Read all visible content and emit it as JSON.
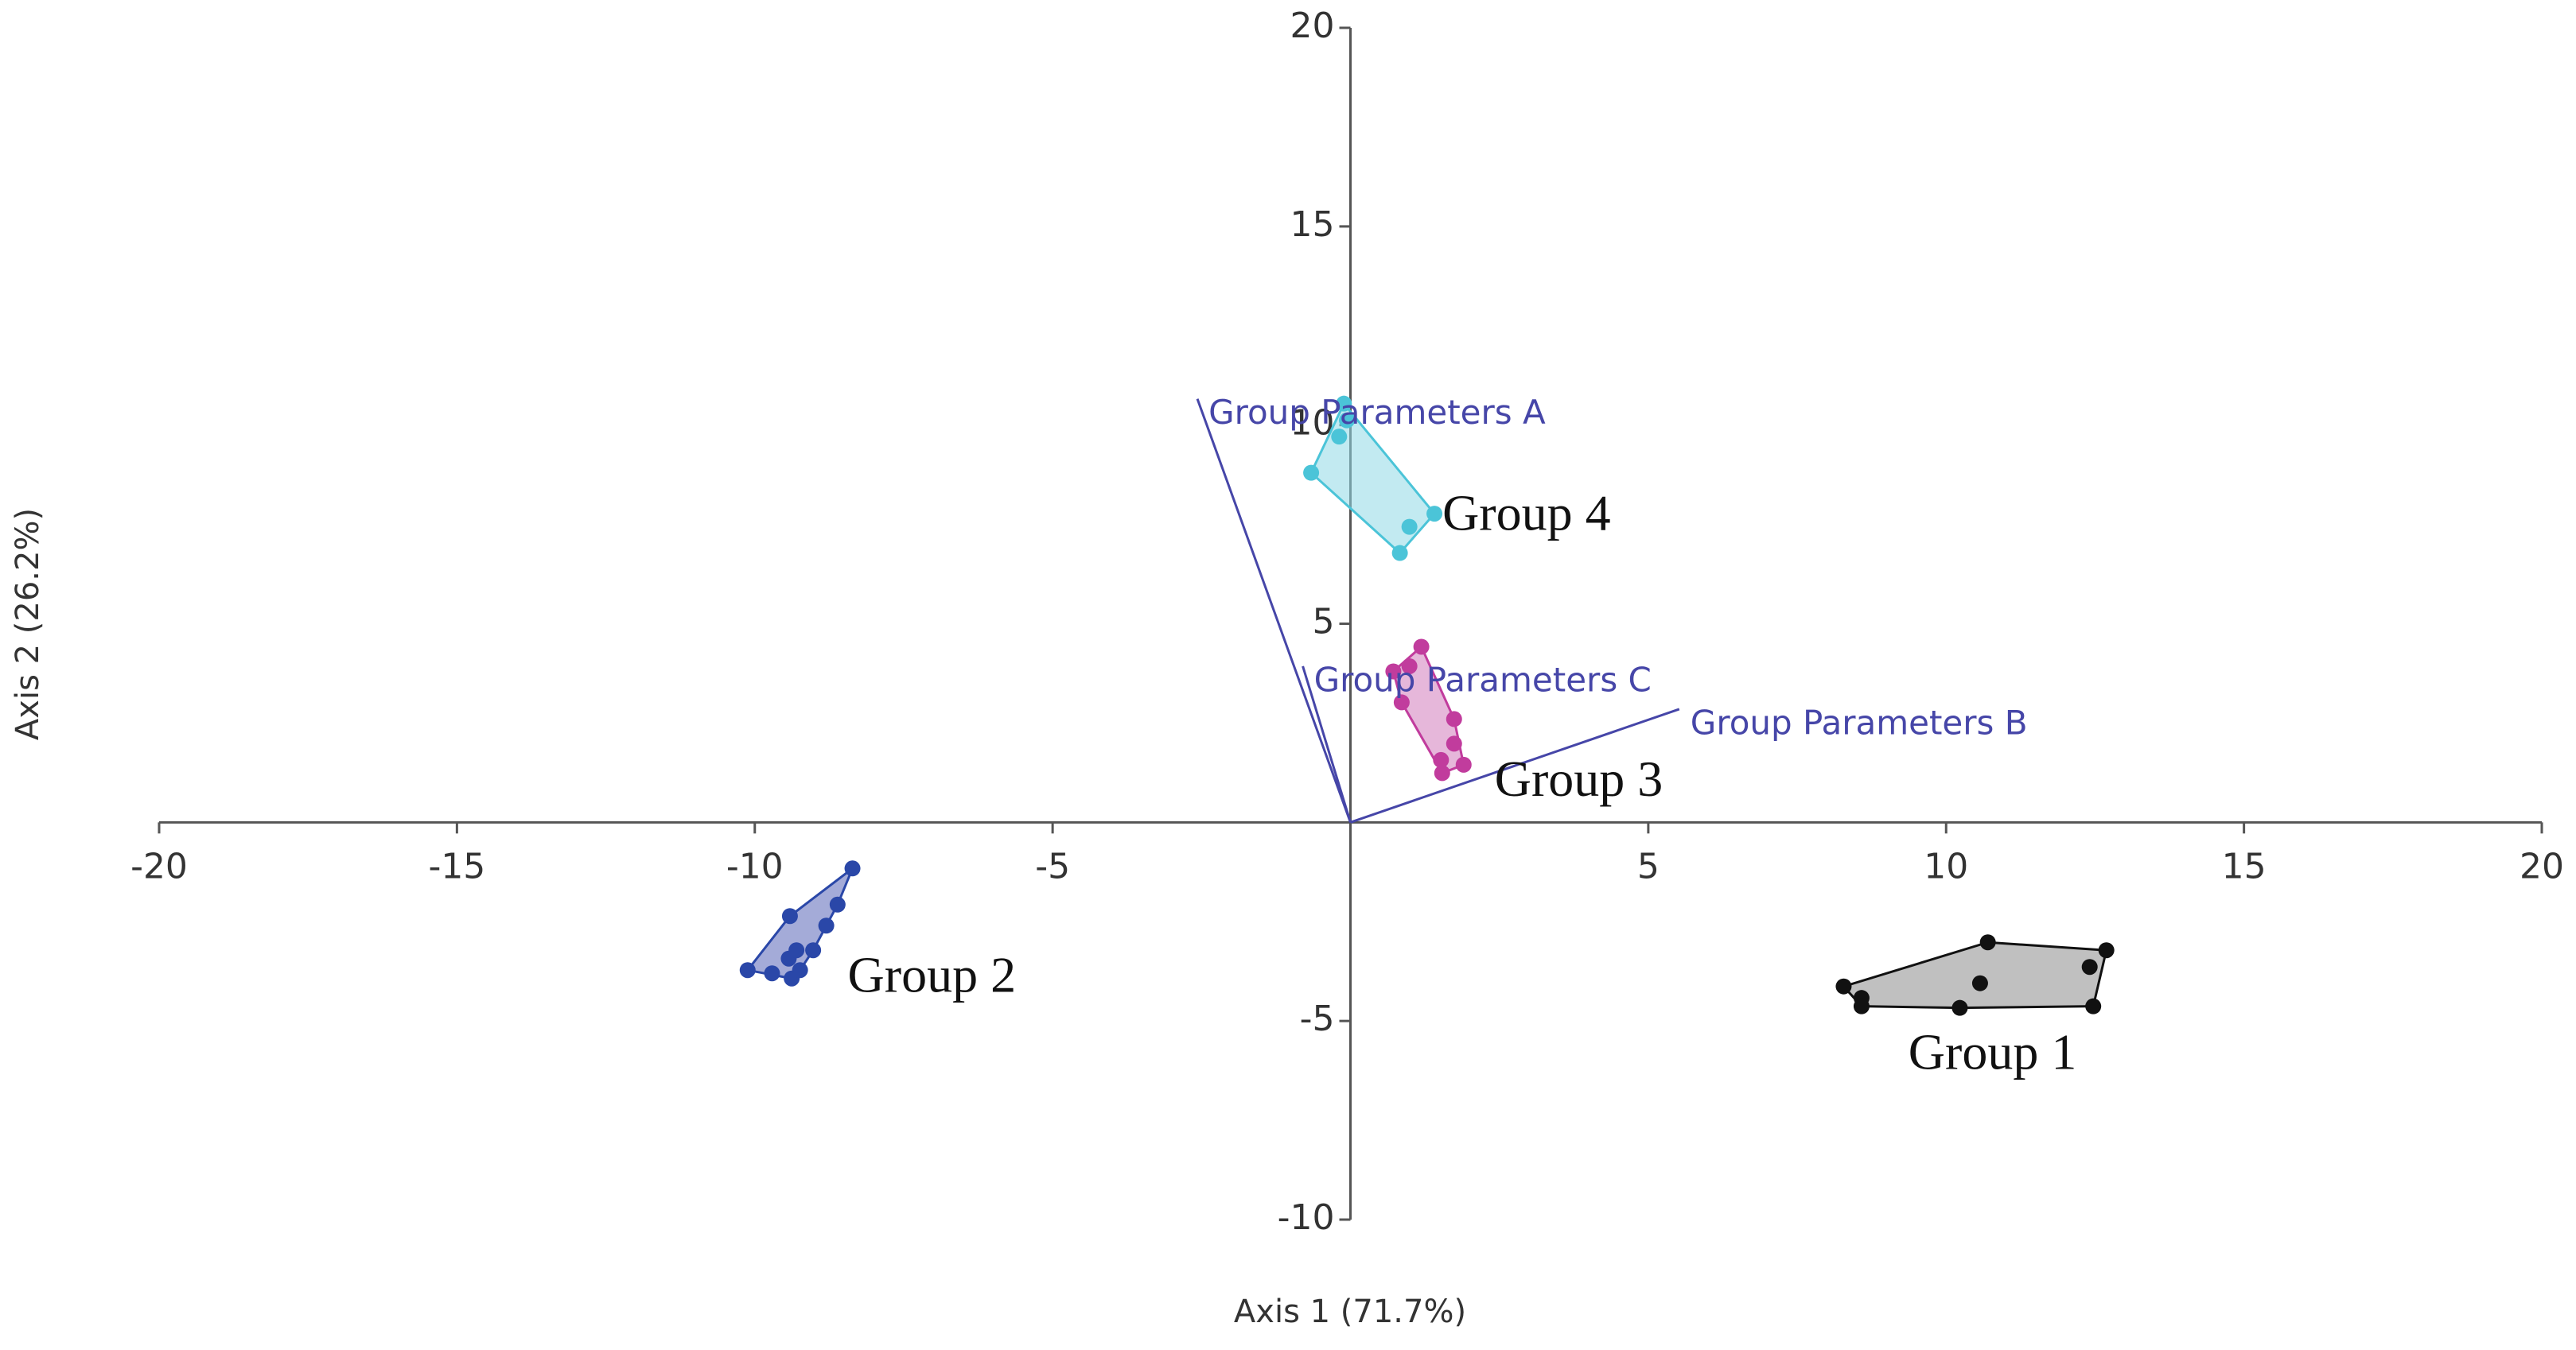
{
  "chart_data": {
    "type": "scatter",
    "x_label": "Axis 1 (71.7%)",
    "y_label": "Axis 2 (26.2%)",
    "xlim": [
      -20,
      20
    ],
    "ylim": [
      -10,
      20
    ],
    "xticks": [
      -20,
      -15,
      -10,
      -5,
      5,
      10,
      15,
      20
    ],
    "yticks": [
      -10,
      -5,
      5,
      10,
      15,
      20
    ],
    "grid": false,
    "series": [
      {
        "name": "Group 1",
        "color": "#111111",
        "fill": "#8c8c8c",
        "x": [
          8.28,
          8.58,
          8.58,
          10.23,
          10.57,
          10.7,
          12.41,
          12.69,
          12.47
        ],
        "values": [
          -4.13,
          -4.42,
          -4.63,
          -4.67,
          -4.05,
          -3.02,
          -3.64,
          -3.22,
          -4.63
        ]
      },
      {
        "name": "Group 2",
        "color": "#2a47a8",
        "fill": "#5a66b8",
        "x": [
          -8.36,
          -8.61,
          -8.8,
          -9.41,
          -10.12,
          -9.71,
          -9.43,
          -9.3,
          -9.02,
          -9.38,
          -9.24
        ],
        "values": [
          -1.16,
          -2.07,
          -2.6,
          -2.36,
          -3.72,
          -3.8,
          -3.43,
          -3.22,
          -3.22,
          -3.93,
          -3.72
        ]
      },
      {
        "name": "Group 3",
        "color": "#c13c9d",
        "fill": "#d27bbb",
        "x": [
          1.19,
          0.99,
          0.72,
          0.86,
          1.74,
          1.74,
          1.52,
          1.54,
          1.9
        ],
        "values": [
          4.42,
          3.93,
          3.8,
          3.02,
          2.6,
          1.98,
          1.57,
          1.24,
          1.45
        ]
      },
      {
        "name": "Group 4",
        "color": "#4bc4d8",
        "fill": "#8fd8e6",
        "x": [
          -0.11,
          -0.19,
          -0.66,
          0.83,
          0.99,
          1.41,
          -0.06
        ],
        "values": [
          10.54,
          9.71,
          8.8,
          6.78,
          7.44,
          7.77,
          10.12
        ]
      }
    ],
    "vectors": [
      {
        "name": "Group Parameters A",
        "color": "#4646a8",
        "x": -2.57,
        "y": 10.66
      },
      {
        "name": "Group Parameters B",
        "color": "#4646a8",
        "x": 5.52,
        "y": 2.85
      },
      {
        "name": "Group Parameters C",
        "color": "#4646a8",
        "x": -0.8,
        "y": 3.93
      }
    ]
  }
}
